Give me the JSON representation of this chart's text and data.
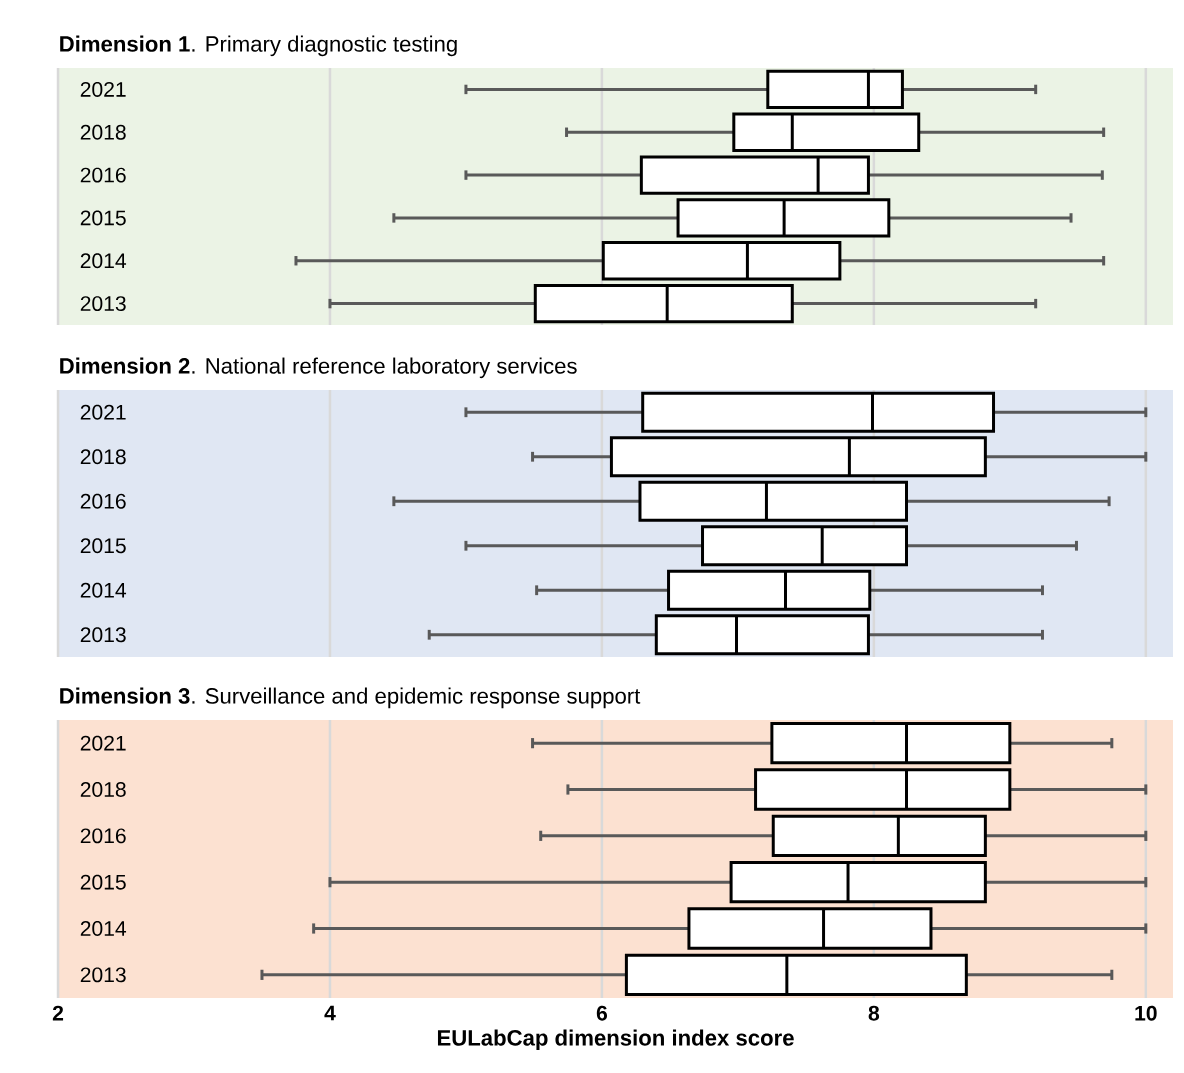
{
  "chart_data": [
    {
      "type": "box",
      "orientation": "horizontal",
      "title": "**Dimension 1**. Primary diagnostic testing",
      "categories": [
        "2021",
        "2018",
        "2016",
        "2015",
        "2014",
        "2013"
      ],
      "boxes": [
        {
          "low": 5.0,
          "q1": 7.22,
          "median": 7.96,
          "q3": 8.21,
          "high": 9.19
        },
        {
          "low": 5.74,
          "q1": 6.97,
          "median": 7.4,
          "q3": 8.33,
          "high": 9.69
        },
        {
          "low": 5.0,
          "q1": 6.29,
          "median": 7.59,
          "q3": 7.96,
          "high": 9.68
        },
        {
          "low": 4.47,
          "q1": 6.56,
          "median": 7.34,
          "q3": 8.11,
          "high": 9.45
        },
        {
          "low": 3.75,
          "q1": 6.01,
          "median": 7.07,
          "q3": 7.75,
          "high": 9.69
        },
        {
          "low": 4.0,
          "q1": 5.51,
          "median": 6.48,
          "q3": 7.4,
          "high": 9.19
        }
      ],
      "xlim": [
        2,
        10.2
      ],
      "xticks": [
        2,
        4,
        6,
        8,
        10
      ],
      "grid": "x",
      "tick_labels": "y",
      "bands": [
        {
          "axis": "x",
          "from": 2,
          "to": 10.2,
          "color": "#ebf3e5"
        }
      ]
    },
    {
      "type": "box",
      "orientation": "horizontal",
      "title": "**Dimension 2**. National reference laboratory services",
      "categories": [
        "2021",
        "2018",
        "2016",
        "2015",
        "2014",
        "2013"
      ],
      "boxes": [
        {
          "low": 5.0,
          "q1": 6.3,
          "median": 7.99,
          "q3": 8.88,
          "high": 10.0
        },
        {
          "low": 5.49,
          "q1": 6.07,
          "median": 7.82,
          "q3": 8.82,
          "high": 10.0
        },
        {
          "low": 4.47,
          "q1": 6.28,
          "median": 7.21,
          "q3": 8.24,
          "high": 9.73
        },
        {
          "low": 5.0,
          "q1": 6.74,
          "median": 7.62,
          "q3": 8.24,
          "high": 9.49
        },
        {
          "low": 5.52,
          "q1": 6.49,
          "median": 7.35,
          "q3": 7.97,
          "high": 9.24
        },
        {
          "low": 4.73,
          "q1": 6.4,
          "median": 6.99,
          "q3": 7.96,
          "high": 9.24
        }
      ],
      "xlim": [
        2,
        10.2
      ],
      "xticks": [
        2,
        4,
        6,
        8,
        10
      ],
      "grid": "x",
      "tick_labels": "y",
      "bands": [
        {
          "axis": "x",
          "from": 2,
          "to": 10.2,
          "color": "#e0e7f3"
        }
      ]
    },
    {
      "type": "box",
      "orientation": "horizontal",
      "title": "**Dimension 3**. Surveillance and epidemic response support",
      "xlabel": "EULabCap dimension index score",
      "categories": [
        "2021",
        "2018",
        "2016",
        "2015",
        "2014",
        "2013"
      ],
      "boxes": [
        {
          "low": 5.49,
          "q1": 7.25,
          "median": 8.24,
          "q3": 9.0,
          "high": 9.75
        },
        {
          "low": 5.75,
          "q1": 7.13,
          "median": 8.24,
          "q3": 9.0,
          "high": 10.0
        },
        {
          "low": 5.55,
          "q1": 7.26,
          "median": 8.18,
          "q3": 8.82,
          "high": 10.0
        },
        {
          "low": 4.0,
          "q1": 6.95,
          "median": 7.81,
          "q3": 8.82,
          "high": 10.0
        },
        {
          "low": 3.88,
          "q1": 6.64,
          "median": 7.63,
          "q3": 8.42,
          "high": 10.0
        },
        {
          "low": 3.5,
          "q1": 6.18,
          "median": 7.36,
          "q3": 8.68,
          "high": 9.75
        }
      ],
      "xlim": [
        2,
        10.2
      ],
      "xticks": [
        2,
        4,
        6,
        8,
        10
      ],
      "grid": "x",
      "bands": [
        {
          "axis": "x",
          "from": 2,
          "to": 10.2,
          "color": "#fce1d1"
        }
      ]
    }
  ]
}
